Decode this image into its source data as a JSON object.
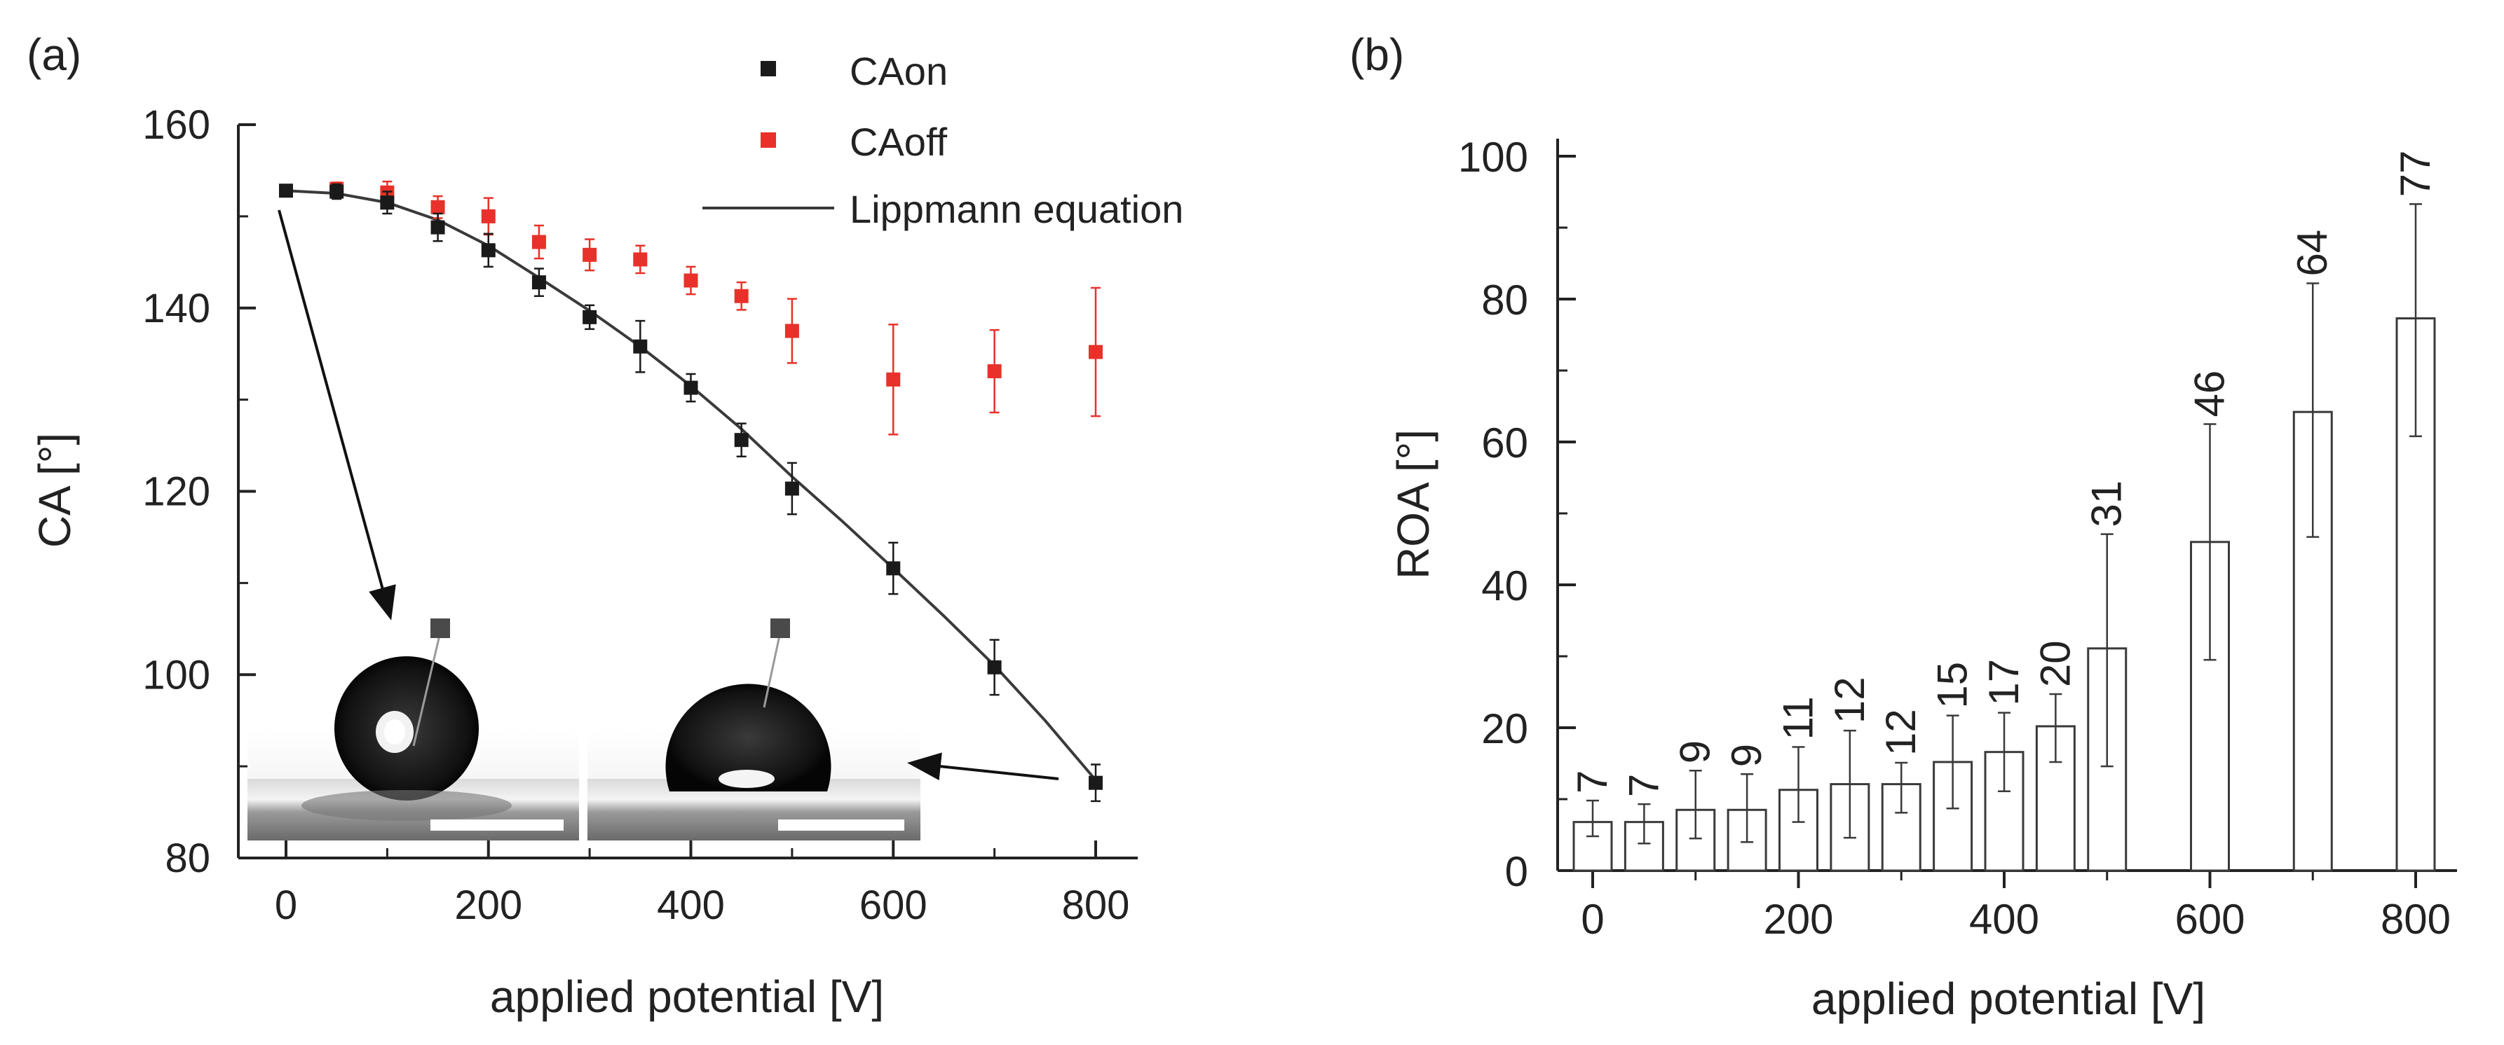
{
  "panel_a": {
    "label": "(a)"
  },
  "panel_b": {
    "label": "(b)"
  },
  "colors": {
    "caon": "#1a1a1a",
    "caoff": "#e8312a",
    "fit": "#3a3a3a",
    "axis": "#222222"
  },
  "chart_data": [
    {
      "type": "scatter",
      "panel": "(a)",
      "xlabel": "applied potential [V]",
      "ylabel": "CA [°]",
      "xlim": [
        -40,
        840
      ],
      "ylim": [
        80,
        160
      ],
      "xticks": [
        0,
        200,
        400,
        600,
        800
      ],
      "yticks": [
        80,
        100,
        120,
        140,
        160
      ],
      "legend_position": "top-center",
      "series": [
        {
          "name": "CAon",
          "marker": "square",
          "color": "#1a1a1a",
          "x": [
            0,
            50,
            100,
            150,
            200,
            250,
            300,
            350,
            400,
            450,
            500,
            600,
            700,
            800
          ],
          "y": [
            152.8,
            152.7,
            151.5,
            148.8,
            146.3,
            142.8,
            139.0,
            135.8,
            131.3,
            125.6,
            120.3,
            111.6,
            100.8,
            88.2
          ],
          "err": [
            0.6,
            0.8,
            1.2,
            1.5,
            1.8,
            1.5,
            1.3,
            2.8,
            1.5,
            1.8,
            2.8,
            2.8,
            3.0,
            2.0
          ]
        },
        {
          "name": "CAoff",
          "marker": "square",
          "color": "#e8312a",
          "x": [
            50,
            100,
            150,
            200,
            250,
            300,
            350,
            400,
            450,
            500,
            600,
            700,
            800
          ],
          "y": [
            153.0,
            152.6,
            151.0,
            150.0,
            147.2,
            145.8,
            145.3,
            143.0,
            141.3,
            137.5,
            132.2,
            133.1,
            135.2
          ],
          "err": [
            0.7,
            1.2,
            1.2,
            2.0,
            1.8,
            1.7,
            1.5,
            1.5,
            1.5,
            3.5,
            6.0,
            4.5,
            7.0
          ]
        },
        {
          "name": "Lippmann equation",
          "type": "line",
          "color": "#3a3a3a",
          "x": [
            0,
            50,
            100,
            150,
            200,
            250,
            300,
            350,
            400,
            450,
            500,
            550,
            600,
            650,
            700,
            750,
            800
          ],
          "y": [
            152.8,
            152.5,
            151.5,
            149.6,
            146.8,
            143.3,
            139.7,
            135.8,
            131.5,
            126.8,
            121.6,
            116.7,
            111.6,
            106.4,
            101.0,
            95.0,
            88.5
          ]
        }
      ],
      "insets": [
        {
          "arrow_from_x": 0,
          "target": "left droplet image"
        },
        {
          "arrow_from_x": 800,
          "target": "right droplet image"
        }
      ]
    },
    {
      "type": "bar",
      "panel": "(b)",
      "xlabel": "applied potential [V]",
      "ylabel": "ROA [°]",
      "xlim": [
        -40,
        840
      ],
      "ylim": [
        0,
        100
      ],
      "xticks": [
        0,
        200,
        400,
        600,
        800
      ],
      "yticks": [
        0,
        20,
        40,
        60,
        80,
        100
      ],
      "categories": [
        0,
        50,
        100,
        150,
        200,
        250,
        300,
        350,
        400,
        450,
        500,
        600,
        700,
        800
      ],
      "values": [
        7,
        7,
        9,
        9,
        11,
        12,
        12,
        15,
        17,
        20,
        31,
        46,
        64,
        77
      ],
      "bar_heights": [
        6.8,
        6.8,
        8.5,
        8.5,
        11.3,
        12.1,
        12.1,
        15.2,
        16.6,
        20.2,
        31.1,
        46.0,
        64.2,
        77.3
      ],
      "err_low": [
        2.0,
        3.0,
        4.0,
        4.5,
        4.5,
        7.5,
        4.0,
        6.5,
        5.5,
        5.0,
        16.5,
        16.5,
        17.5,
        16.5
      ],
      "err_high": [
        3.0,
        2.5,
        5.5,
        5.0,
        6.0,
        7.5,
        3.0,
        6.5,
        5.5,
        4.5,
        16.0,
        16.5,
        18.0,
        16.0
      ],
      "data_labels": [
        "7",
        "7",
        "9",
        "9",
        "11",
        "12",
        "12",
        "15",
        "17",
        "20",
        "31",
        "46",
        "64",
        "77"
      ]
    }
  ]
}
